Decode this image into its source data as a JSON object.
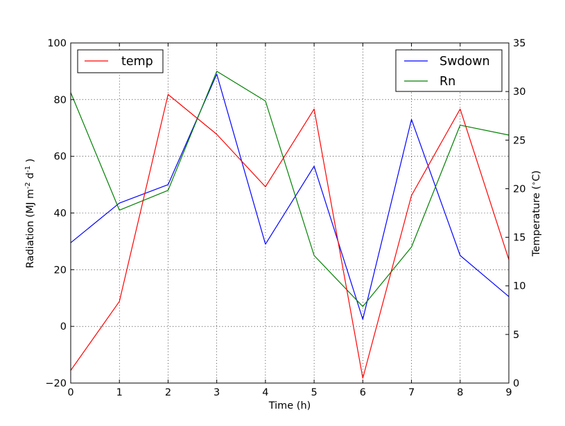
{
  "chart_data": {
    "type": "line",
    "xlabel": "Time (h)",
    "ylabel_left": "Radiation (MJ m-2 d-1)",
    "ylabel_right": "Temperature (°C)",
    "xlim": [
      0,
      9
    ],
    "ylim_left": [
      -20,
      100
    ],
    "ylim_right": [
      0,
      35
    ],
    "grid": true,
    "x": [
      0,
      1,
      2,
      3,
      4,
      5,
      6,
      7,
      8,
      9
    ],
    "x_ticks": [
      "0",
      "1",
      "2",
      "3",
      "4",
      "5",
      "6",
      "7",
      "8",
      "9"
    ],
    "y_ticks_left": [
      "−20",
      "0",
      "20",
      "40",
      "60",
      "80",
      "100"
    ],
    "y_ticks_right": [
      "0",
      "5",
      "10",
      "15",
      "20",
      "25",
      "30",
      "35"
    ],
    "series": [
      {
        "name": "Swdown",
        "axis": "left",
        "color": "#0000ff",
        "values": [
          29.5,
          43.5,
          50.0,
          89.0,
          29.0,
          56.5,
          2.5,
          73.0,
          25.0,
          10.5
        ]
      },
      {
        "name": "Rn",
        "axis": "left",
        "color": "#008000",
        "values": [
          82.5,
          41.0,
          48.0,
          90.0,
          79.5,
          25.0,
          7.0,
          28.0,
          71.0,
          67.5
        ]
      },
      {
        "name": "temp",
        "axis": "right",
        "color": "#ff0000",
        "values": [
          1.3,
          8.4,
          29.7,
          25.6,
          20.2,
          28.2,
          0.5,
          19.3,
          28.2,
          12.7
        ]
      }
    ],
    "legend_left": {
      "placement": "upper-left",
      "entries": [
        "temp"
      ]
    },
    "legend_right": {
      "placement": "upper-right",
      "entries": [
        "Swdown",
        "Rn"
      ]
    }
  }
}
